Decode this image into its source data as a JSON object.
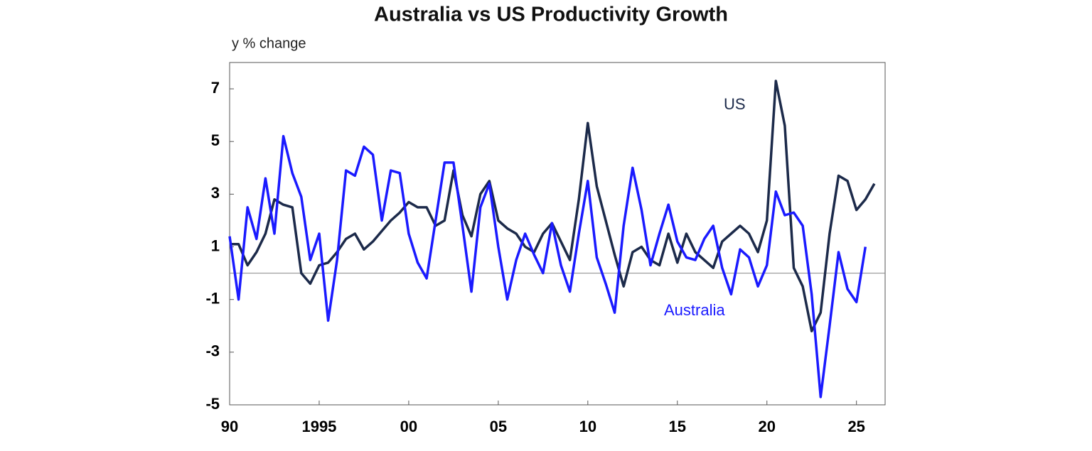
{
  "chart_data": {
    "type": "line",
    "title": "Australia vs US Productivity Growth",
    "y_label": "y % change",
    "annotations": [
      "US",
      "Australia"
    ],
    "x": [
      1990,
      1990.5,
      1991,
      1991.5,
      1992,
      1992.5,
      1993,
      1993.5,
      1994,
      1994.5,
      1995,
      1995.5,
      1996,
      1996.5,
      1997,
      1997.5,
      1998,
      1998.5,
      1999,
      1999.5,
      2000,
      2000.5,
      2001,
      2001.5,
      2002,
      2002.5,
      2003,
      2003.5,
      2004,
      2004.5,
      2005,
      2005.5,
      2006,
      2006.5,
      2007,
      2007.5,
      2008,
      2008.5,
      2009,
      2009.5,
      2010,
      2010.5,
      2011,
      2011.5,
      2012,
      2012.5,
      2013,
      2013.5,
      2014,
      2014.5,
      2015,
      2015.5,
      2016,
      2016.5,
      2017,
      2017.5,
      2018,
      2018.5,
      2019,
      2019.5,
      2020,
      2020.5,
      2021,
      2021.5,
      2022,
      2022.5,
      2023,
      2023.5,
      2024,
      2024.5,
      2025,
      2025.5,
      2026
    ],
    "series": [
      {
        "name": "US",
        "color": "#1c2a4a",
        "values": [
          1.1,
          1.1,
          0.3,
          0.8,
          1.5,
          2.8,
          2.6,
          2.5,
          0.0,
          -0.4,
          0.3,
          0.4,
          0.8,
          1.3,
          1.5,
          0.9,
          1.2,
          1.6,
          2.0,
          2.3,
          2.7,
          2.5,
          2.5,
          1.8,
          2.0,
          3.9,
          2.2,
          1.4,
          3.0,
          3.5,
          2.0,
          1.7,
          1.5,
          1.0,
          0.8,
          1.5,
          1.9,
          1.2,
          0.5,
          2.8,
          5.7,
          3.3,
          2.0,
          0.7,
          -0.5,
          0.8,
          1.0,
          0.5,
          0.3,
          1.5,
          0.4,
          1.5,
          0.8,
          0.5,
          0.2,
          1.2,
          1.5,
          1.8,
          1.5,
          0.8,
          2.0,
          7.3,
          5.6,
          0.2,
          -0.5,
          -2.2,
          -1.5,
          1.5,
          3.7,
          3.5,
          2.4,
          2.8,
          3.4
        ]
      },
      {
        "name": "Australia",
        "color": "#1a1aff",
        "values": [
          1.4,
          -1.0,
          2.5,
          1.3,
          3.6,
          1.5,
          5.2,
          3.8,
          2.9,
          0.5,
          1.5,
          -1.8,
          0.5,
          3.9,
          3.7,
          4.8,
          4.5,
          2.0,
          3.9,
          3.8,
          1.5,
          0.4,
          -0.2,
          2.0,
          4.2,
          4.2,
          1.8,
          -0.7,
          2.5,
          3.4,
          1.0,
          -1.0,
          0.5,
          1.5,
          0.7,
          0.0,
          1.9,
          0.3,
          -0.7,
          1.5,
          3.5,
          0.6,
          -0.4,
          -1.5,
          1.8,
          4.0,
          2.4,
          0.3,
          1.5,
          2.6,
          1.2,
          0.6,
          0.5,
          1.3,
          1.8,
          0.2,
          -0.8,
          0.9,
          0.6,
          -0.5,
          0.3,
          3.1,
          2.2,
          2.3,
          1.8,
          -0.8,
          -4.7,
          -2.0,
          0.8,
          -0.6,
          -1.1,
          1.0,
          null
        ]
      }
    ],
    "xlim": [
      1990,
      2026.6
    ],
    "xticks": [
      {
        "value": 1990,
        "label": "90"
      },
      1995,
      {
        "value": 2000,
        "label": "00"
      },
      {
        "value": 2005,
        "label": "05"
      },
      {
        "value": 2010,
        "label": "10"
      },
      {
        "value": 2015,
        "label": "15"
      },
      {
        "value": 2020,
        "label": "20"
      },
      {
        "value": 2025,
        "label": "25"
      }
    ],
    "ylim": [
      -5,
      8
    ],
    "yticks": [
      -5,
      -3,
      -1,
      1,
      3,
      5,
      7
    ],
    "grid": false
  }
}
